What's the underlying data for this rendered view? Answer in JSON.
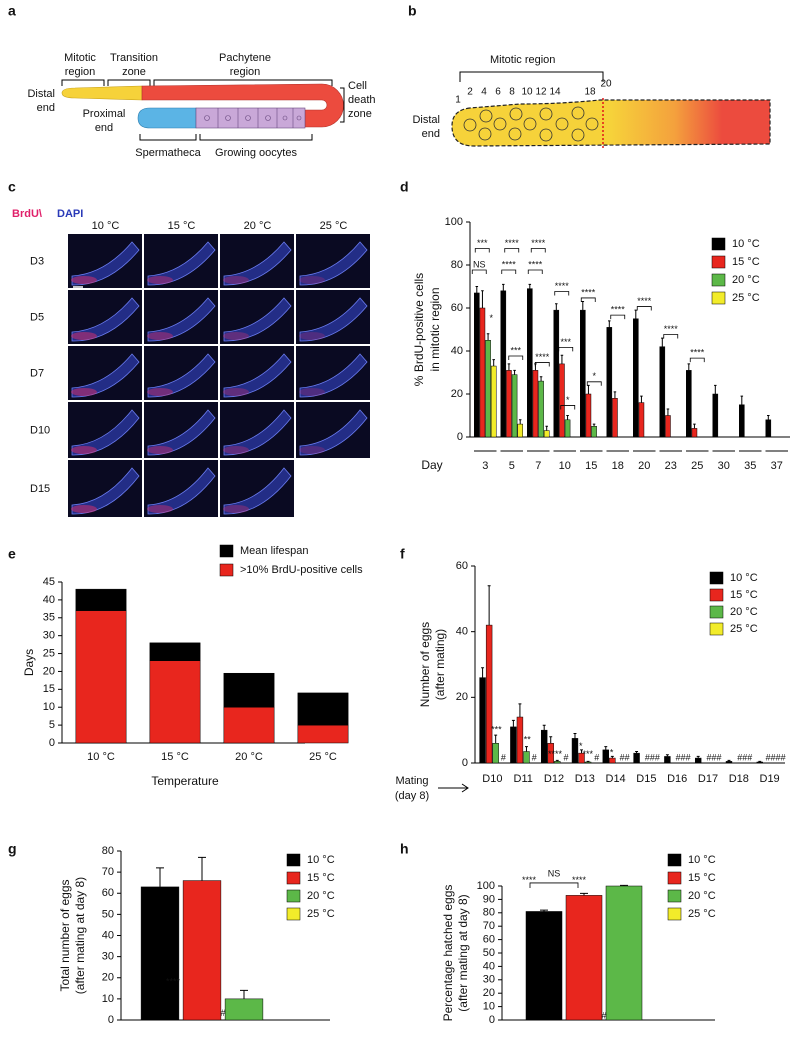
{
  "panel_a": {
    "label": "a",
    "mitotic": [
      "Mitotic",
      "region"
    ],
    "transition": [
      "Transition",
      "zone"
    ],
    "pachytene": [
      "Pachytene",
      "region"
    ],
    "distal": [
      "Distal",
      "end"
    ],
    "proximal": [
      "Proximal",
      "end"
    ],
    "cell_death": [
      "Cell",
      "death",
      "zone"
    ],
    "spermatheca": "Spermatheca",
    "oocytes": "Growing oocytes"
  },
  "panel_b": {
    "label": "b",
    "mitotic": "Mitotic region",
    "cell_numbers": [
      "1",
      "2",
      "4",
      "6",
      "8",
      "10",
      "12",
      "14",
      "18",
      "20"
    ],
    "distal": [
      "Distal",
      "end"
    ]
  },
  "panel_c": {
    "label": "c",
    "stain_brdu": "BrdU\\",
    "stain_dapi": "DAPI",
    "columns": [
      "10 °C",
      "15 °C",
      "20 °C",
      "25 °C"
    ],
    "rows": [
      "D3",
      "D5",
      "D7",
      "D10",
      "D15"
    ]
  },
  "chart_data": [
    {
      "type": "bar",
      "panel_label": "d",
      "ylabel": [
        "% BrdU-positive cells",
        "in mitotic region"
      ],
      "xlabel": "Day",
      "categories": [
        "3",
        "5",
        "7",
        "10",
        "15",
        "18",
        "20",
        "23",
        "25",
        "30",
        "35",
        "37"
      ],
      "series": [
        {
          "name": "10 °C",
          "color": "#000000",
          "values": [
            67,
            68,
            69,
            59,
            59,
            51,
            55,
            42,
            31,
            20,
            15,
            8
          ],
          "errors": [
            3,
            3,
            2,
            3,
            4,
            3,
            4,
            4,
            3,
            4,
            4,
            2
          ]
        },
        {
          "name": "15 °C",
          "color": "#e8261e",
          "values": [
            60,
            31,
            31,
            34,
            20,
            18,
            16,
            10,
            4,
            null,
            null,
            null
          ],
          "errors": [
            8,
            3,
            3,
            4,
            4,
            3,
            3,
            3,
            2,
            null,
            null,
            null
          ]
        },
        {
          "name": "20 °C",
          "color": "#5cb848",
          "values": [
            45,
            29,
            26,
            8,
            5,
            null,
            null,
            null,
            null,
            null,
            null,
            null
          ],
          "errors": [
            3,
            2,
            2,
            2,
            1,
            null,
            null,
            null,
            null,
            null,
            null,
            null
          ]
        },
        {
          "name": "25 °C",
          "color": "#f2ec2a",
          "values": [
            33,
            6,
            3,
            null,
            null,
            null,
            null,
            null,
            null,
            null,
            null,
            null
          ],
          "errors": [
            3,
            2,
            2,
            null,
            null,
            null,
            null,
            null,
            null,
            null,
            null,
            null
          ]
        }
      ],
      "ylim": [
        0,
        100
      ],
      "yticks": [
        0,
        20,
        40,
        60,
        80,
        100
      ],
      "annotations": [
        "***",
        "NS",
        "*",
        "****",
        "****",
        "***",
        "****",
        "****",
        "****",
        "****",
        "***",
        "*",
        "****",
        "*",
        "****",
        "****",
        "****",
        "****"
      ]
    },
    {
      "type": "stacked_bar",
      "panel_label": "e",
      "ylabel": "Days",
      "xlabel": "Temperature",
      "categories": [
        "10 °C",
        "15 °C",
        "20 °C",
        "25 °C"
      ],
      "series": [
        {
          "name": "Mean lifespan",
          "color": "#000000",
          "values": [
            6,
            5,
            9.5,
            9
          ]
        },
        {
          "name": ">10% BrdU-positive cells",
          "color": "#e8261e",
          "values": [
            37,
            23,
            10,
            5
          ]
        }
      ],
      "ylim": [
        0,
        45
      ],
      "yticks": [
        0,
        5,
        10,
        15,
        20,
        25,
        30,
        35,
        40,
        45
      ]
    },
    {
      "type": "bar",
      "panel_label": "f",
      "ylabel": [
        "Number of eggs",
        "(after mating)"
      ],
      "x_note": [
        "Mating",
        "(day 8)"
      ],
      "categories": [
        "D10",
        "D11",
        "D12",
        "D13",
        "D14",
        "D15",
        "D16",
        "D17",
        "D18",
        "D19"
      ],
      "series": [
        {
          "name": "10 °C",
          "color": "#000000",
          "values": [
            26,
            11,
            10,
            7.5,
            4,
            3,
            2,
            1.5,
            0.5,
            0.3
          ],
          "errors": [
            3,
            2,
            1.5,
            1.5,
            1,
            0.5,
            0.5,
            0.5,
            0.3,
            0.2
          ]
        },
        {
          "name": "15 °C",
          "color": "#e8261e",
          "values": [
            42,
            14,
            6,
            3,
            1.5,
            null,
            null,
            null,
            null,
            null
          ],
          "errors": [
            12,
            4,
            2,
            1,
            0.5,
            null,
            null,
            null,
            null,
            null
          ]
        },
        {
          "name": "20 °C",
          "color": "#5cb848",
          "values": [
            6,
            3.5,
            0.5,
            0.3,
            null,
            null,
            null,
            null,
            null,
            null
          ],
          "errors": [
            2.5,
            1.5,
            0.3,
            0.2,
            null,
            null,
            null,
            null,
            null,
            null
          ]
        },
        {
          "name": "25 °C",
          "color": "#f2ec2a",
          "values": [
            null,
            null,
            null,
            null,
            null,
            null,
            null,
            null,
            null,
            null
          ],
          "errors": [
            null,
            null,
            null,
            null,
            null,
            null,
            null,
            null,
            null,
            null
          ]
        }
      ],
      "ylim": [
        0,
        60
      ],
      "yticks": [
        0,
        20,
        40,
        60
      ],
      "annotations": [
        "***",
        "#",
        "**",
        "#",
        "****",
        "#",
        "*",
        "***",
        "#",
        "*",
        "##",
        "###",
        "###",
        "###",
        "###",
        "####"
      ]
    },
    {
      "type": "bar",
      "panel_label": "g",
      "ylabel": [
        "Total number of eggs",
        "(after mating at day 8)"
      ],
      "categories": [
        null
      ],
      "series": [
        {
          "name": "10 °C",
          "color": "#000000",
          "values": [
            63
          ],
          "errors": [
            9
          ]
        },
        {
          "name": "15 °C",
          "color": "#e8261e",
          "values": [
            66
          ],
          "errors": [
            11
          ]
        },
        {
          "name": "20 °C",
          "color": "#5cb848",
          "values": [
            10
          ],
          "errors": [
            4
          ]
        },
        {
          "name": "25 °C",
          "color": "#f2ec2a",
          "values": [
            null
          ],
          "errors": [
            null
          ]
        }
      ],
      "ylim": [
        0,
        80
      ],
      "yticks": [
        0,
        10,
        20,
        30,
        40,
        50,
        60,
        70,
        80
      ],
      "annotations": [
        "****",
        "#"
      ]
    },
    {
      "type": "bar",
      "panel_label": "h",
      "ylabel": [
        "Percentage hatched eggs",
        "(after mating at day 8)"
      ],
      "categories": [
        null
      ],
      "series": [
        {
          "name": "10 °C",
          "color": "#000000",
          "values": [
            81
          ],
          "errors": [
            1
          ]
        },
        {
          "name": "15 °C",
          "color": "#e8261e",
          "values": [
            93
          ],
          "errors": [
            1.5
          ]
        },
        {
          "name": "20 °C",
          "color": "#5cb848",
          "values": [
            100
          ],
          "errors": [
            0.5
          ]
        },
        {
          "name": "25 °C",
          "color": "#f2ec2a",
          "values": [
            null
          ],
          "errors": [
            null
          ]
        }
      ],
      "ylim": [
        0,
        100
      ],
      "yticks": [
        0,
        10,
        20,
        30,
        40,
        50,
        60,
        70,
        80,
        90,
        100
      ],
      "annotations": [
        "NS",
        "****",
        "****",
        "#"
      ]
    }
  ]
}
